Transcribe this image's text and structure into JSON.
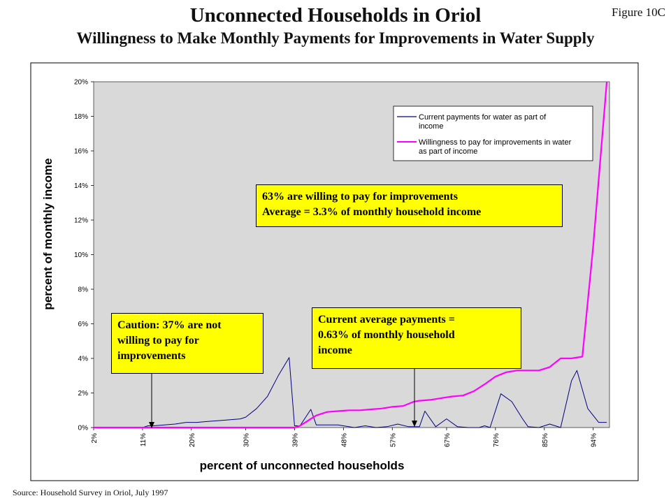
{
  "page": {
    "title": "Unconnected Households in Oriol",
    "subtitle": "Willingness to Make Monthly Payments for Improvements in Water Supply",
    "figure_label": "Figure 10C",
    "source": "Source: Household Survey in Oriol, July 1997"
  },
  "callouts": {
    "willing": [
      "63% are willing to pay for improvements",
      "Average = 3.3% of monthly household income"
    ],
    "current": [
      "Current average payments =",
      "0.63% of monthly household",
      "income"
    ],
    "caution": [
      "Caution: 37% are not",
      "willing to pay for",
      "improvements"
    ]
  },
  "chart_data": {
    "type": "line",
    "xlabel": "percent of unconnected households",
    "ylabel": "percent of monthly income",
    "xlim": [
      2,
      97
    ],
    "ylim": [
      0,
      20
    ],
    "x_tick_labels": [
      "2%",
      "11%",
      "20%",
      "30%",
      "39%",
      "48%",
      "57%",
      "67%",
      "76%",
      "85%",
      "94%"
    ],
    "x_tick_values": [
      2,
      11,
      20,
      30,
      39,
      48,
      57,
      67,
      76,
      85,
      94
    ],
    "y_tick_labels": [
      "0%",
      "2%",
      "4%",
      "6%",
      "8%",
      "10%",
      "12%",
      "14%",
      "16%",
      "18%",
      "20%"
    ],
    "y_tick_values": [
      0,
      2,
      4,
      6,
      8,
      10,
      12,
      14,
      16,
      18,
      20
    ],
    "grid": false,
    "plot_background": "#d9d9d9",
    "legend_position": "top-right",
    "series": [
      {
        "name": "Current payments for water as part of income",
        "color": "#000080",
        "x": [
          2,
          11,
          12,
          13,
          15,
          17,
          19,
          21,
          23,
          25,
          27,
          29,
          30,
          32,
          34,
          36,
          38,
          39,
          40,
          42,
          43,
          45,
          47,
          48,
          50,
          52,
          54,
          56,
          58,
          60,
          62,
          63,
          65,
          67,
          69,
          71,
          73,
          74,
          75,
          77,
          79,
          81,
          82,
          84,
          86,
          88,
          90,
          91,
          93,
          95,
          96.5
        ],
        "y": [
          0,
          0,
          0.1,
          0.1,
          0.15,
          0.2,
          0.3,
          0.3,
          0.35,
          0.4,
          0.45,
          0.5,
          0.6,
          1.1,
          1.8,
          3.0,
          4.05,
          0.1,
          0.1,
          1.05,
          0.15,
          0.15,
          0.15,
          0.1,
          0,
          0.1,
          0,
          0.05,
          0.2,
          0.05,
          0.05,
          0.95,
          0.05,
          0.5,
          0.05,
          0,
          0,
          0.1,
          0,
          1.95,
          1.5,
          0.5,
          0.05,
          0,
          0.2,
          0,
          2.7,
          3.3,
          1.1,
          0.3,
          0.3
        ]
      },
      {
        "name": "Willingness to pay for improvements in water as part of income",
        "color": "#ff00ff",
        "x": [
          2,
          39,
          40,
          41,
          42,
          43,
          45,
          47,
          49,
          51,
          53,
          55,
          57,
          59,
          61,
          62,
          64,
          66,
          68,
          70,
          72,
          74,
          76,
          78,
          80,
          82,
          84,
          86,
          88,
          90,
          92,
          94,
          96.5
        ],
        "y": [
          0,
          0,
          0.1,
          0.3,
          0.5,
          0.7,
          0.9,
          0.95,
          1.0,
          1.0,
          1.05,
          1.1,
          1.2,
          1.25,
          1.5,
          1.55,
          1.6,
          1.7,
          1.8,
          1.85,
          2.1,
          2.5,
          2.95,
          3.2,
          3.3,
          3.3,
          3.3,
          3.5,
          4.0,
          4.0,
          4.1,
          10.5,
          20
        ]
      }
    ]
  }
}
